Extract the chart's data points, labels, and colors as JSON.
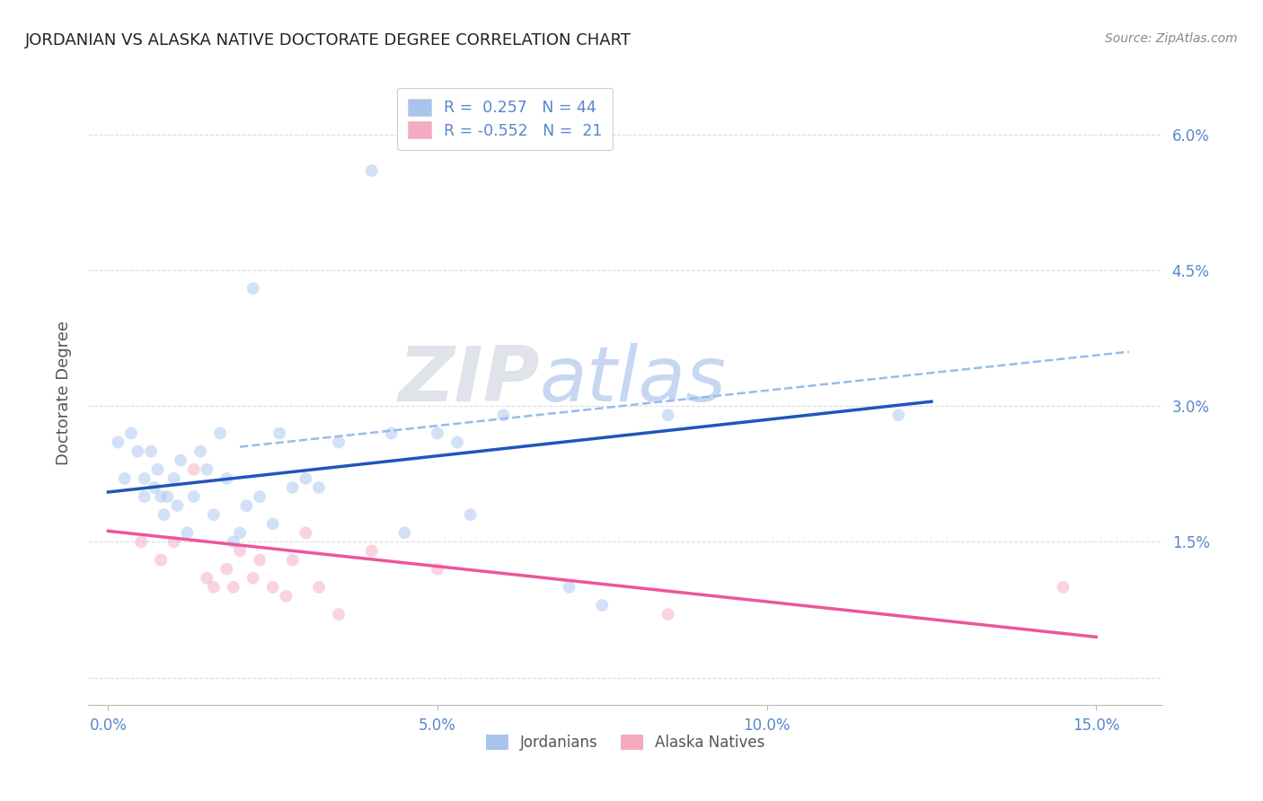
{
  "title": "JORDANIAN VS ALASKA NATIVE DOCTORATE DEGREE CORRELATION CHART",
  "source": "Source: ZipAtlas.com",
  "ylabel": "Doctorate Degree",
  "xlabel_ticks": [
    "0.0%",
    "5.0%",
    "10.0%",
    "15.0%"
  ],
  "xlabel_tick_vals": [
    0.0,
    5.0,
    10.0,
    15.0
  ],
  "ytick_vals": [
    0.0,
    1.5,
    3.0,
    4.5,
    6.0
  ],
  "ytick_labels": [
    "",
    "1.5%",
    "3.0%",
    "4.5%",
    "6.0%"
  ],
  "xlim": [
    -0.3,
    16.0
  ],
  "ylim": [
    -0.3,
    6.6
  ],
  "blue_color": "#A8C4EE",
  "pink_color": "#F5AABF",
  "line_blue": "#2255BB",
  "line_pink": "#EE5599",
  "line_dash": "#99BBEE",
  "bg_color": "#FFFFFF",
  "title_color": "#222222",
  "tick_color": "#5588CC",
  "source_color": "#888888",
  "ylabel_color": "#555555",
  "grid_color": "#DDDDDD",
  "axis_color": "#BBBBBB",
  "watermark_zip": "ZIP",
  "watermark_atlas": "atlas",
  "jordanians_x": [
    0.15,
    0.25,
    0.35,
    0.45,
    0.55,
    0.55,
    0.65,
    0.7,
    0.75,
    0.8,
    0.85,
    0.9,
    1.0,
    1.05,
    1.1,
    1.2,
    1.3,
    1.4,
    1.5,
    1.6,
    1.7,
    1.8,
    1.9,
    2.0,
    2.1,
    2.2,
    2.3,
    2.5,
    2.6,
    2.8,
    3.0,
    3.2,
    3.5,
    4.0,
    4.3,
    4.5,
    5.0,
    5.3,
    5.5,
    6.0,
    7.0,
    7.5,
    8.5,
    12.0
  ],
  "jordanians_y": [
    2.6,
    2.2,
    2.7,
    2.5,
    2.0,
    2.2,
    2.5,
    2.1,
    2.3,
    2.0,
    1.8,
    2.0,
    2.2,
    1.9,
    2.4,
    1.6,
    2.0,
    2.5,
    2.3,
    1.8,
    2.7,
    2.2,
    1.5,
    1.6,
    1.9,
    4.3,
    2.0,
    1.7,
    2.7,
    2.1,
    2.2,
    2.1,
    2.6,
    5.6,
    2.7,
    1.6,
    2.7,
    2.6,
    1.8,
    2.9,
    1.0,
    0.8,
    2.9,
    2.9
  ],
  "alaska_x": [
    0.5,
    0.8,
    1.0,
    1.3,
    1.5,
    1.6,
    1.8,
    1.9,
    2.0,
    2.2,
    2.3,
    2.5,
    2.7,
    2.8,
    3.0,
    3.2,
    3.5,
    4.0,
    5.0,
    8.5,
    14.5
  ],
  "alaska_y": [
    1.5,
    1.3,
    1.5,
    2.3,
    1.1,
    1.0,
    1.2,
    1.0,
    1.4,
    1.1,
    1.3,
    1.0,
    0.9,
    1.3,
    1.6,
    1.0,
    0.7,
    1.4,
    1.2,
    0.7,
    1.0
  ],
  "blue_trendline_x": [
    0.0,
    12.5
  ],
  "blue_trendline_y": [
    2.05,
    3.05
  ],
  "pink_trendline_x": [
    0.0,
    15.0
  ],
  "pink_trendline_y": [
    1.62,
    0.45
  ],
  "dash_trendline_x": [
    2.0,
    15.5
  ],
  "dash_trendline_y": [
    2.55,
    3.6
  ],
  "marker_size": 100,
  "alpha": 0.5,
  "title_fontsize": 13,
  "tick_fontsize": 12,
  "source_fontsize": 10,
  "ylabel_fontsize": 13
}
